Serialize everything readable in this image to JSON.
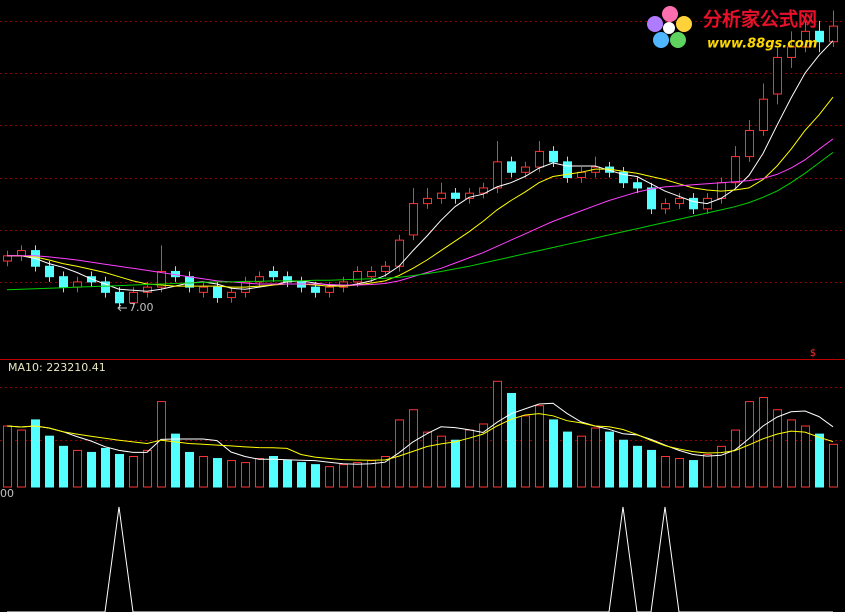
{
  "chart_data": [
    {
      "type": "candlestick",
      "up_color": "#ff3232",
      "down_color": "#54ffff",
      "open": [
        7.9,
        8.0,
        8.1,
        7.8,
        7.6,
        7.4,
        7.6,
        7.5,
        7.3,
        7.1,
        7.3,
        7.4,
        7.7,
        7.6,
        7.3,
        7.4,
        7.2,
        7.3,
        7.5,
        7.7,
        7.6,
        7.5,
        7.4,
        7.3,
        7.4,
        7.5,
        7.6,
        7.7,
        7.8,
        8.4,
        9.0,
        9.1,
        9.2,
        9.1,
        9.2,
        9.3,
        9.8,
        9.6,
        9.7,
        10.0,
        9.8,
        9.5,
        9.6,
        9.7,
        9.6,
        9.4,
        9.3,
        8.9,
        9.0,
        9.1,
        8.9,
        9.1,
        9.4,
        9.9,
        10.4,
        11.1,
        11.8,
        12.0,
        12.3,
        12.1
      ],
      "high": [
        8.1,
        8.2,
        8.2,
        7.9,
        7.7,
        7.6,
        7.7,
        7.6,
        7.4,
        7.4,
        7.5,
        8.2,
        7.8,
        7.7,
        7.5,
        7.5,
        7.4,
        7.6,
        7.7,
        7.8,
        7.7,
        7.6,
        7.5,
        7.5,
        7.6,
        7.8,
        7.8,
        7.9,
        8.4,
        9.3,
        9.3,
        9.4,
        9.3,
        9.3,
        9.4,
        10.2,
        9.9,
        9.8,
        10.2,
        10.1,
        9.9,
        9.7,
        9.9,
        9.8,
        9.7,
        9.5,
        9.4,
        9.1,
        9.2,
        9.2,
        9.2,
        9.5,
        10.1,
        10.6,
        11.3,
        12.0,
        12.3,
        12.6,
        12.5,
        12.7
      ],
      "low": [
        7.8,
        7.9,
        7.7,
        7.5,
        7.3,
        7.3,
        7.4,
        7.2,
        7.0,
        7.0,
        7.2,
        7.3,
        7.5,
        7.3,
        7.2,
        7.1,
        7.1,
        7.2,
        7.4,
        7.5,
        7.4,
        7.3,
        7.2,
        7.2,
        7.3,
        7.4,
        7.5,
        7.6,
        7.7,
        8.3,
        8.9,
        9.0,
        9.0,
        9.0,
        9.1,
        9.2,
        9.5,
        9.5,
        9.6,
        9.7,
        9.4,
        9.4,
        9.5,
        9.5,
        9.3,
        9.2,
        8.8,
        8.8,
        8.9,
        8.8,
        8.8,
        9.0,
        9.3,
        9.8,
        10.3,
        10.9,
        11.6,
        11.9,
        11.9,
        12.0
      ],
      "close": [
        8.0,
        8.1,
        7.8,
        7.6,
        7.4,
        7.5,
        7.5,
        7.3,
        7.1,
        7.3,
        7.4,
        7.7,
        7.6,
        7.4,
        7.4,
        7.2,
        7.3,
        7.5,
        7.6,
        7.6,
        7.5,
        7.4,
        7.3,
        7.4,
        7.5,
        7.7,
        7.7,
        7.8,
        8.3,
        9.0,
        9.1,
        9.2,
        9.1,
        9.2,
        9.3,
        9.8,
        9.6,
        9.7,
        10.0,
        9.8,
        9.5,
        9.6,
        9.7,
        9.6,
        9.4,
        9.3,
        8.9,
        9.0,
        9.1,
        8.9,
        9.1,
        9.4,
        9.9,
        10.4,
        11.0,
        11.8,
        12.0,
        12.3,
        12.1,
        12.4
      ],
      "series": [
        {
          "color": "#ffffff",
          "values": [
            8.0,
            8.0,
            7.95,
            7.85,
            7.78,
            7.68,
            7.56,
            7.46,
            7.36,
            7.34,
            7.32,
            7.36,
            7.42,
            7.48,
            7.5,
            7.46,
            7.38,
            7.36,
            7.4,
            7.44,
            7.5,
            7.52,
            7.48,
            7.44,
            7.42,
            7.46,
            7.52,
            7.62,
            7.8,
            8.1,
            8.38,
            8.68,
            8.94,
            9.12,
            9.18,
            9.32,
            9.4,
            9.52,
            9.68,
            9.78,
            9.72,
            9.72,
            9.72,
            9.64,
            9.56,
            9.52,
            9.38,
            9.24,
            9.14,
            9.04,
            9.0,
            9.1,
            9.28,
            9.54,
            9.96,
            10.5,
            11.02,
            11.5,
            11.84,
            12.12
          ]
        },
        {
          "color": "#ffff00",
          "values": [
            8.0,
            8.0,
            7.98,
            7.92,
            7.85,
            7.8,
            7.74,
            7.68,
            7.6,
            7.52,
            7.46,
            7.44,
            7.42,
            7.42,
            7.42,
            7.42,
            7.4,
            7.4,
            7.42,
            7.44,
            7.46,
            7.46,
            7.44,
            7.42,
            7.42,
            7.44,
            7.48,
            7.52,
            7.62,
            7.76,
            7.92,
            8.1,
            8.28,
            8.46,
            8.66,
            8.88,
            9.06,
            9.22,
            9.4,
            9.52,
            9.56,
            9.6,
            9.66,
            9.66,
            9.62,
            9.58,
            9.52,
            9.46,
            9.38,
            9.3,
            9.26,
            9.24,
            9.26,
            9.3,
            9.46,
            9.72,
            10.04,
            10.4,
            10.7,
            11.04
          ]
        },
        {
          "color": "#ff40ff",
          "values": [
            8.0,
            8.0,
            8.0,
            7.98,
            7.95,
            7.92,
            7.88,
            7.84,
            7.8,
            7.76,
            7.72,
            7.68,
            7.64,
            7.6,
            7.56,
            7.52,
            7.5,
            7.48,
            7.46,
            7.46,
            7.46,
            7.46,
            7.46,
            7.45,
            7.44,
            7.44,
            7.45,
            7.47,
            7.52,
            7.6,
            7.68,
            7.76,
            7.86,
            7.96,
            8.06,
            8.18,
            8.3,
            8.42,
            8.54,
            8.66,
            8.76,
            8.86,
            8.96,
            9.06,
            9.14,
            9.22,
            9.28,
            9.32,
            9.34,
            9.36,
            9.38,
            9.4,
            9.42,
            9.44,
            9.48,
            9.56,
            9.68,
            9.84,
            10.04,
            10.24
          ]
        },
        {
          "color": "#00d000",
          "values": [
            7.35,
            7.36,
            7.37,
            7.38,
            7.39,
            7.4,
            7.41,
            7.42,
            7.43,
            7.44,
            7.45,
            7.46,
            7.47,
            7.48,
            7.49,
            7.5,
            7.5,
            7.51,
            7.51,
            7.52,
            7.52,
            7.52,
            7.53,
            7.53,
            7.54,
            7.55,
            7.56,
            7.57,
            7.59,
            7.62,
            7.66,
            7.7,
            7.75,
            7.8,
            7.86,
            7.92,
            7.98,
            8.04,
            8.1,
            8.16,
            8.22,
            8.28,
            8.34,
            8.4,
            8.46,
            8.52,
            8.58,
            8.64,
            8.7,
            8.76,
            8.82,
            8.88,
            8.94,
            9.02,
            9.12,
            9.24,
            9.4,
            9.58,
            9.78,
            9.98
          ]
        }
      ],
      "ylim": [
        6.1,
        12.9
      ],
      "yticks": [
        7.5,
        8.5,
        9.5,
        10.5,
        11.5,
        12.5
      ],
      "grid": true,
      "grid_color": "#900000",
      "low_annotation": "7.00",
      "marker": "$"
    },
    {
      "type": "bar",
      "legend_label": "MA10: 223210.41",
      "values": [
        300000,
        280000,
        330000,
        250000,
        200000,
        180000,
        170000,
        190000,
        160000,
        150000,
        180000,
        420000,
        260000,
        170000,
        150000,
        140000,
        130000,
        120000,
        140000,
        150000,
        130000,
        120000,
        110000,
        100000,
        110000,
        120000,
        130000,
        150000,
        330000,
        380000,
        270000,
        250000,
        230000,
        280000,
        310000,
        520000,
        460000,
        350000,
        400000,
        330000,
        270000,
        250000,
        290000,
        270000,
        230000,
        200000,
        180000,
        150000,
        140000,
        130000,
        160000,
        200000,
        280000,
        420000,
        440000,
        380000,
        330000,
        300000,
        260000,
        210000
      ],
      "series": [
        {
          "color": "#ffffff",
          "values": [
            300000,
            295000,
            300000,
            290000,
            272000,
            248000,
            226000,
            198000,
            180000,
            170000,
            170000,
            234000,
            236000,
            236000,
            236000,
            228000,
            172000,
            150000,
            136000,
            136000,
            134000,
            132000,
            130000,
            122000,
            114000,
            112000,
            114000,
            122000,
            168000,
            222000,
            262000,
            296000,
            292000,
            282000,
            268000,
            318000,
            360000,
            384000,
            408000,
            412000,
            362000,
            320000,
            300000,
            284000,
            262000,
            256000,
            234000,
            206000,
            180000,
            160000,
            152000,
            156000,
            182000,
            238000,
            300000,
            344000,
            370000,
            374000,
            346000,
            296000
          ]
        },
        {
          "color": "#ffff00",
          "values": [
            300000,
            295000,
            300000,
            290000,
            272000,
            260000,
            250000,
            240000,
            230000,
            222000,
            214000,
            230000,
            222000,
            214000,
            210000,
            206000,
            202000,
            197000,
            194000,
            193000,
            190000,
            160000,
            147000,
            140000,
            135000,
            133000,
            132000,
            133000,
            152000,
            175000,
            199000,
            212000,
            222000,
            240000,
            260000,
            300000,
            333000,
            354000,
            361000,
            350000,
            326000,
            315000,
            300000,
            296000,
            283000,
            258000,
            229000,
            203000,
            187000,
            174000,
            167000,
            169000,
            179000,
            207000,
            237000,
            260000,
            275000,
            270000,
            245000,
            223210.41
          ]
        }
      ],
      "ylim": [
        0,
        600000
      ],
      "yticks": [
        230000,
        490000
      ],
      "grid": true,
      "grid_color": "#900000"
    },
    {
      "type": "line",
      "scale_label": "00",
      "values": [
        0,
        0,
        0,
        0,
        0,
        0,
        0,
        0,
        1,
        0,
        0,
        0,
        0,
        0,
        0,
        0,
        0,
        0,
        0,
        0,
        0,
        0,
        0,
        0,
        0,
        0,
        0,
        0,
        0,
        0,
        0,
        0,
        0,
        0,
        0,
        0,
        0,
        0,
        0,
        0,
        0,
        0,
        0,
        0,
        1,
        0,
        0,
        1,
        0,
        0,
        0,
        0,
        0,
        0,
        0,
        0,
        0,
        0,
        0,
        0
      ],
      "color": "#ffffff",
      "ylim": [
        0,
        1
      ]
    }
  ],
  "watermark": {
    "title": "分析家公式网",
    "url": "www.88gs.com"
  }
}
